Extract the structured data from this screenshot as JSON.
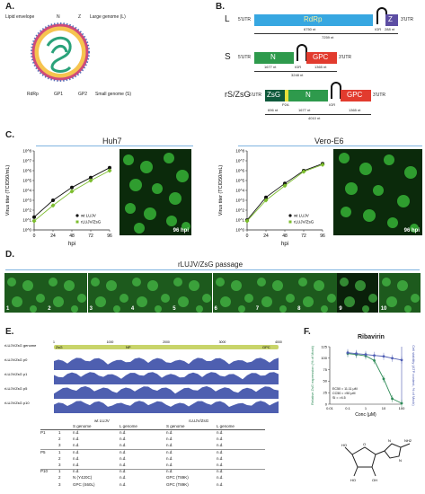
{
  "panels": {
    "A": "A.",
    "B": "B.",
    "C": "C.",
    "D": "D.",
    "E": "E.",
    "F": "F."
  },
  "virion": {
    "labels": [
      "Lipid envelope",
      "N",
      "Z",
      "Large genome (L)",
      "RdRp",
      "GP1",
      "GP2",
      "Small genome (S)"
    ]
  },
  "genomes": {
    "L": {
      "name": "L",
      "utr5": "5'UTR",
      "utr3": "3'UTR",
      "rdrp": "RdRp",
      "z": "Z",
      "igr": "IGR",
      "len_rdrp": "6750 nt",
      "len_z": "288 nt",
      "total": "7259 nt"
    },
    "S": {
      "name": "S",
      "utr5": "5'UTR",
      "utr3": "3'UTR",
      "n": "N",
      "gpc": "GPC",
      "igr": "IGR",
      "len_n": "1677 nt",
      "len_gpc": "1365 nt",
      "total": "3248 nt"
    },
    "rS": {
      "name": "rS/ZsG",
      "utr5": "5'UTR",
      "utr3": "3'UTR",
      "zsg": "ZsG",
      "p2a": "P2A",
      "n": "N",
      "gpc": "GPC",
      "igr": "IGR",
      "len_zsg": "696 nt",
      "len_n": "1677 nt",
      "len_gpc": "1365 nt",
      "total": "4010 nt"
    }
  },
  "growth": {
    "left_title": "Huh7",
    "right_title": "Vero-E6",
    "ylabel": "Virus titer (TCID50/mL)",
    "xlabel": "hpi",
    "hpi_label": "96 hpi",
    "legend_wt": "wt LUJV",
    "legend_rluj": "rLUJV/ZsG"
  },
  "chart_data": [
    {
      "type": "line",
      "title": "Huh7",
      "xlabel": "hpi",
      "ylabel": "Virus titer (TCID50/mL)",
      "x": [
        0,
        24,
        48,
        72,
        96
      ],
      "xticks": [
        "0",
        "24",
        "48",
        "72",
        "96"
      ],
      "yticks": [
        "10^0",
        "10^1",
        "10^2",
        "10^3",
        "10^4",
        "10^5",
        "10^6",
        "10^7",
        "10^8"
      ],
      "ylim": [
        1,
        100000000
      ],
      "yscale": "log",
      "series": [
        {
          "name": "wt LUJV",
          "color": "#111111",
          "values": [
            20,
            1000,
            20000,
            200000,
            2000000
          ]
        },
        {
          "name": "rLUJV/ZsG",
          "color": "#7cbd2e",
          "values": [
            8,
            300,
            8000,
            100000,
            1000000
          ]
        }
      ]
    },
    {
      "type": "line",
      "title": "Vero-E6",
      "xlabel": "hpi",
      "ylabel": "Virus titer (TCID50/mL)",
      "x": [
        0,
        24,
        48,
        72,
        96
      ],
      "xticks": [
        "0",
        "24",
        "48",
        "72",
        "96"
      ],
      "yticks": [
        "10^0",
        "10^1",
        "10^2",
        "10^3",
        "10^4",
        "10^5",
        "10^6",
        "10^7",
        "10^8"
      ],
      "ylim": [
        1,
        100000000
      ],
      "yscale": "log",
      "series": [
        {
          "name": "wt LUJV",
          "color": "#111111",
          "values": [
            10,
            2000,
            50000,
            1000000,
            5000000
          ]
        },
        {
          "name": "rLUJV/ZsG",
          "color": "#7cbd2e",
          "values": [
            8,
            1000,
            30000,
            800000,
            4000000
          ]
        }
      ]
    },
    {
      "type": "line",
      "title": "Ribavirin",
      "xlabel": "Conc (μM)",
      "ylabel": "Relative ZsG expression (% of Mock)",
      "y2label": "Cell viability (ATP content, % of Mock)",
      "xscale": "log",
      "x": [
        0.1,
        0.3,
        1,
        3,
        10,
        30,
        100
      ],
      "xticks": [
        "0.01",
        "0.1",
        "1",
        "10",
        "100"
      ],
      "yticks": [
        "0",
        "25",
        "50",
        "75",
        "100",
        "125"
      ],
      "ylim": [
        0,
        125
      ],
      "series": [
        {
          "name": "ZsG",
          "color": "#2e8b57",
          "values": [
            110,
            108,
            105,
            95,
            55,
            12,
            2
          ]
        },
        {
          "name": "Viability",
          "color": "#4f5db3",
          "values": [
            112,
            110,
            108,
            106,
            104,
            100,
            96
          ]
        }
      ]
    }
  ],
  "passage": {
    "title": "rLUJV/ZsG passage",
    "labels": [
      "1",
      "2",
      "3",
      "4",
      "5",
      "6",
      "7",
      "8",
      "9",
      "10"
    ]
  },
  "ngs": {
    "tracks": [
      "rLUJV/ZsG genome",
      "rLUJV/ZsG p0",
      "rLUJV/ZsG p1",
      "rLUJV/ZsG p5",
      "rLUJV/ZsG p10"
    ],
    "features": {
      "zsg": "ZsG",
      "np": "NP",
      "gpc": "GPC"
    },
    "ticks": [
      "1",
      "1000",
      "2000",
      "3000",
      "4000"
    ]
  },
  "table": {
    "group_wt": "wt LUJV",
    "group_r": "rLUJV/ZsG",
    "cols": [
      "S genome",
      "L genome",
      "S genome",
      "L genome"
    ],
    "rows": [
      {
        "p": "P1",
        "n": "1",
        "c": [
          "n.d.",
          "n.d.",
          "n.d.",
          "n.d."
        ]
      },
      {
        "p": "",
        "n": "2",
        "c": [
          "n.d.",
          "n.d.",
          "n.d.",
          "n.d."
        ]
      },
      {
        "p": "",
        "n": "3",
        "c": [
          "n.d.",
          "n.d.",
          "n.d.",
          "n.d."
        ]
      },
      {
        "p": "P5",
        "n": "1",
        "c": [
          "n.d.",
          "n.d.",
          "n.d.",
          "n.d."
        ]
      },
      {
        "p": "",
        "n": "2",
        "c": [
          "n.d.",
          "n.d.",
          "n.d.",
          "n.d."
        ]
      },
      {
        "p": "",
        "n": "3",
        "c": [
          "n.d.",
          "n.d.",
          "n.d.",
          "n.d."
        ]
      },
      {
        "p": "P10",
        "n": "1",
        "c": [
          "n.d.",
          "n.d.",
          "n.d.",
          "n.d."
        ]
      },
      {
        "p": "",
        "n": "2",
        "c": [
          "N (Y420C)",
          "n.d.",
          "GPC (T89K)",
          "n.d."
        ]
      },
      {
        "p": "",
        "n": "3",
        "c": [
          "GPC (S60L)",
          "n.d.",
          "GPC (T89K)",
          "n.d."
        ]
      }
    ]
  },
  "ribavirin": {
    "title": "Ribavirin",
    "ec50": "EC50 = 11.11 μM",
    "cc50": "CC50 = >50 μM",
    "si": "SI = >4.5",
    "xlabel": "Conc (μM)",
    "ylabel": "Relative ZsG expression (% of Mock)",
    "y2label": "Cell viability (ATP content, % of Mock)"
  }
}
